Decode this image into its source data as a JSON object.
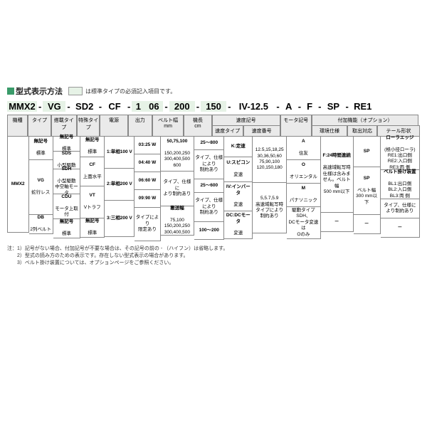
{
  "title": "型式表示方法",
  "legend": "は標準タイプの必須記入項目です。",
  "model": [
    "MMX2",
    "-",
    "VG",
    "-",
    "SD2",
    "-",
    "CF",
    "-",
    "1",
    "06",
    "-",
    "200",
    "-",
    "150",
    "-",
    "IV-12.5",
    "-",
    "A",
    "-",
    "F",
    "-",
    "SP",
    "-",
    "RE1"
  ],
  "highlight": [
    true,
    false,
    true,
    false,
    false,
    false,
    false,
    false,
    true,
    true,
    false,
    true,
    false,
    true,
    false,
    false,
    false,
    false,
    false,
    false,
    false,
    false,
    false,
    false
  ],
  "headers": {
    "c1": "機種",
    "c2": "タイプ",
    "c3": "搭載タイプ",
    "c4": "特殊タイプ",
    "c5": "電源",
    "c6": "出力",
    "c7": "ベルト幅\nmm",
    "c8": "機長\ncm",
    "g1": "速度記号",
    "c9": "速度タイプ",
    "c10": "速度番号",
    "c11": "モータ記号",
    "g2": "付加機能（オプション）",
    "c12": "環境仕様",
    "c13": "取出対応",
    "c14": "テール形状"
  },
  "col1": {
    "a": "MMX2"
  },
  "col2": {
    "a": "無記号\n標準",
    "b": "VG\n蛇行レス",
    "c": "DB\n2列ベルト"
  },
  "col3": {
    "a": "無記号\n標準",
    "b": "SDS\n小型駆動",
    "c": "SDH\n小型駆動\n中空軸モータ",
    "d": "CDU\nモータ上取付",
    "e": "無記号\n標準"
  },
  "col4": {
    "a": "無記号\n標準",
    "b": "CF\n上面水平",
    "c": "VT\nVトラフ",
    "d": "無記号\n標準"
  },
  "col5": {
    "a": "1:単相100 V",
    "b": "2:単相200 V",
    "c": "3:三相200 V"
  },
  "col6": {
    "a": "03:25 W",
    "b": "04:40 W",
    "c": "06:60 W",
    "d": "09:90 W",
    "e": "タイプにより\n限定あり"
  },
  "col7": {
    "a": "50,75,100\n150,200,250\n300,400,500\n600",
    "b": "タイプ、仕様に\nより制約あり",
    "c": "搬送幅\n75,100\n150,200,250\n300,400,500"
  },
  "col8": {
    "a": "25～800",
    "b": "タイプ、仕様\nにより\n制約あり",
    "c": "25～600",
    "d": "タイプ、仕様\nにより\n制約あり",
    "e": "100～200"
  },
  "col9": {
    "a": "K:定速",
    "b": "U:スピコン\n変速",
    "c": "IV:インバータ\n変速",
    "d": "DC:DCモータ\n変速"
  },
  "col10": {
    "a": "12.5,15,18,25\n30,36,50,60\n75,90,100\n120,150,180",
    "b": "5,5.7,5.9\n高速域転写時\nタイプにより\n制約あり"
  },
  "col11": {
    "a": "A\n住友",
    "b": "O\nオリエンタル",
    "c": "M\nパナソニック",
    "d": "駆動タイプSDH、\nDCモータ変速は\nOのみ"
  },
  "col12": {
    "a": "F:24時間連続\n高速域転写時\n仕様は含みま\nせん。ベルト幅\n500 mm以下",
    "b": "－"
  },
  "col13": {
    "a": "SP",
    "b": "SP\nベルト幅\n300 mm以下",
    "c": "－"
  },
  "col14": {
    "a": "ローラエッジ\n(極小径ローラ)\nRE1:出口側\nRE2:入口側\nRE3:両 側",
    "b": "ベルト掛け装置\nBL1:出口側\nBL2:入口側\nBL3:両 側",
    "c": "タイプ、仕様に\nより制約あり",
    "d": "－"
  },
  "notes": {
    "n1": "注：1）記号がない場合、付加記号が不要な場合は、その記号の前の - （ハイフン）は省略します。",
    "n2": "　　2）型式の読み方のための表示です。存在しない型式表示の場合があります。",
    "n3": "　　3）ベルト掛け装置については、オプションページをご参照ください。"
  },
  "widths": {
    "c1": 30,
    "c2": 34,
    "c3": 38,
    "c4": 34,
    "c5": 42,
    "c6": 36,
    "c7": 48,
    "c8": 42,
    "c9": 40,
    "c10": 48,
    "c11": 48,
    "c12": 46,
    "c13": 38,
    "c14": 56
  },
  "colors": {
    "hl": "#e6f2e6",
    "hdr": "#eaeaea",
    "line": "#888"
  }
}
